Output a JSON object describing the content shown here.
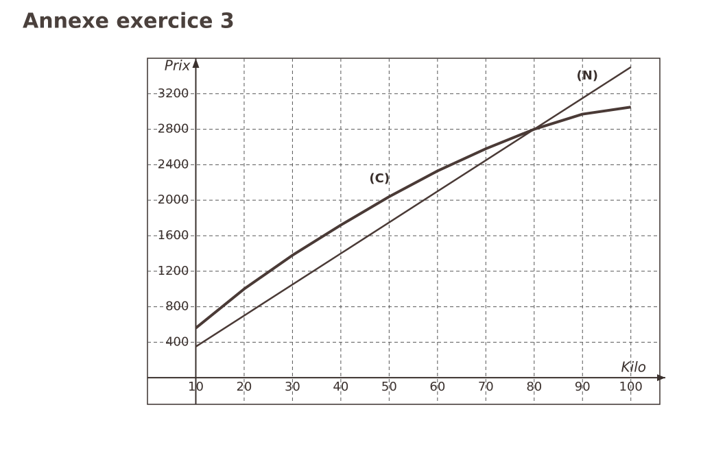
{
  "chart_data": {
    "type": "line",
    "title": "Annexe exercice 3",
    "xlabel": "Kilo",
    "ylabel": "Prix",
    "x": [
      10,
      20,
      30,
      40,
      50,
      60,
      70,
      80,
      90,
      100
    ],
    "series": [
      {
        "color": "#4a3a36",
        "values": [
          560,
          1000,
          1380,
          1720,
          2040,
          2330,
          2580,
          2800,
          2970,
          3050
        ]
      },
      {
        "color": "#4a3a36",
        "values": [
          350,
          700,
          1050,
          1400,
          1750,
          2100,
          2450,
          2800,
          3150,
          3500
        ]
      }
    ],
    "annotations": [
      {
        "text": "(C)",
        "x": 48,
        "y": 2240
      },
      {
        "text": "(N)",
        "x": 91,
        "y": 3400
      }
    ],
    "xlim": [
      0,
      106
    ],
    "ylim": [
      -300,
      3600
    ],
    "xticks": [
      10,
      20,
      30,
      40,
      50,
      60,
      70,
      80,
      90,
      100
    ],
    "yticks": [
      400,
      800,
      1200,
      1600,
      2000,
      2400,
      2800,
      3200
    ],
    "grid": true
  }
}
